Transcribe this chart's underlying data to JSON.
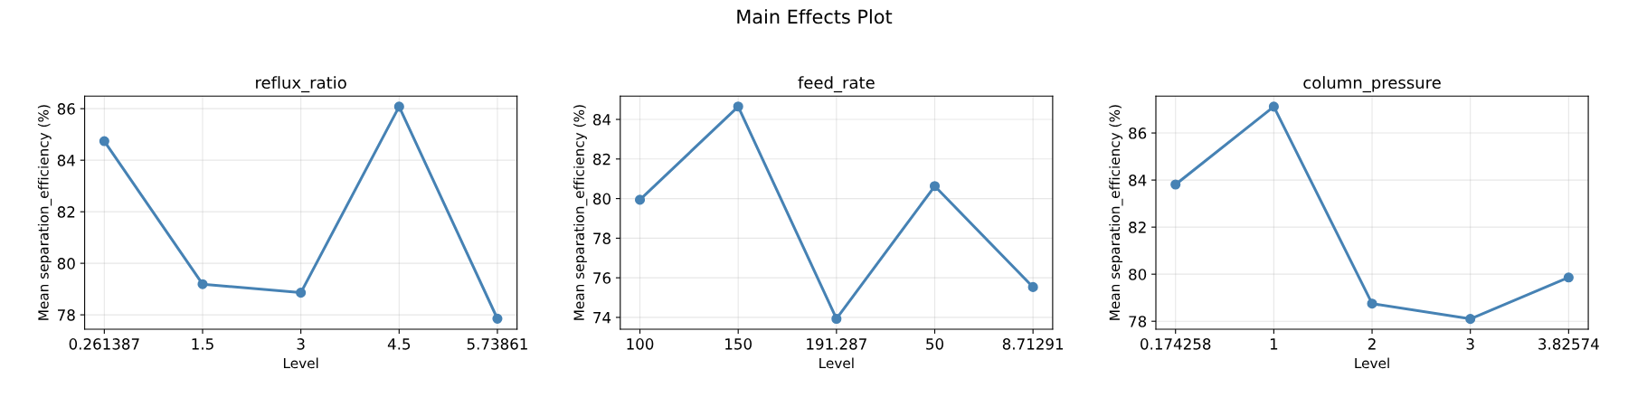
{
  "chart_data": [
    {
      "type": "line",
      "annotations": [
        "Main Effects Plot"
      ],
      "title": "reflux_ratio",
      "xlabel": "Level",
      "ylabel": "Mean separation_efficiency (%)",
      "categories": [
        "0.261387",
        "1.5",
        "3",
        "4.5",
        "5.73861"
      ],
      "series": [
        {
          "color": "#4682b4",
          "values": [
            84.74,
            79.19,
            78.86,
            86.08,
            77.85
          ]
        }
      ],
      "ylim": [
        77.44,
        86.49
      ],
      "yticks": [
        78,
        80,
        82,
        84,
        86
      ],
      "grid": true,
      "marker": "circle",
      "line_style": "solid"
    },
    {
      "type": "line",
      "title": "feed_rate",
      "xlabel": "Level",
      "ylabel": "Mean separation_efficiency (%)",
      "categories": [
        "100",
        "150",
        "191.287",
        "50",
        "8.71291"
      ],
      "series": [
        {
          "color": "#4682b4",
          "values": [
            79.94,
            84.65,
            73.93,
            80.63,
            75.53
          ]
        }
      ],
      "ylim": [
        73.4,
        85.18
      ],
      "yticks": [
        74,
        76,
        78,
        80,
        82,
        84
      ],
      "grid": true,
      "marker": "circle",
      "line_style": "solid"
    },
    {
      "type": "line",
      "title": "column_pressure",
      "xlabel": "Level",
      "ylabel": "Mean separation_efficiency (%)",
      "categories": [
        "0.174258",
        "1",
        "2",
        "3",
        "3.82574"
      ],
      "series": [
        {
          "color": "#4682b4",
          "values": [
            83.81,
            87.12,
            78.75,
            78.1,
            79.86
          ]
        }
      ],
      "ylim": [
        77.66,
        87.57
      ],
      "yticks": [
        78,
        80,
        82,
        84,
        86
      ],
      "grid": true,
      "marker": "circle",
      "line_style": "solid"
    }
  ]
}
